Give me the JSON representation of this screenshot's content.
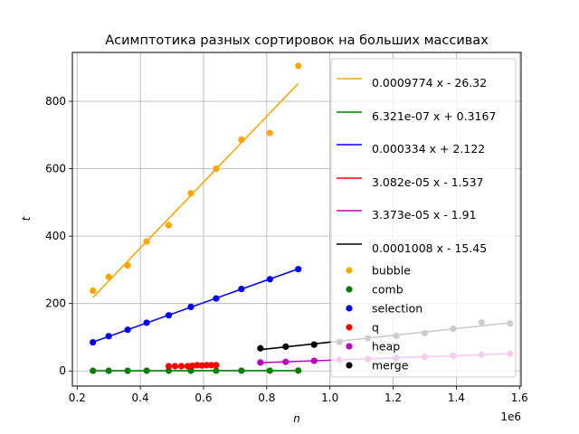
{
  "chart_data": {
    "type": "scatter",
    "title": "Асимптотика разных сортировок на больших массивах",
    "xlabel": "n",
    "ylabel": "t",
    "x_offset_label": "1e6",
    "xlim": [
      0.185,
      1.605
    ],
    "ylim": [
      -45,
      945
    ],
    "grid": true,
    "legend_position": "upper right",
    "x_ticks": [
      {
        "value": 0.2,
        "label": "0.2"
      },
      {
        "value": 0.4,
        "label": "0.4"
      },
      {
        "value": 0.6,
        "label": "0.6"
      },
      {
        "value": 0.8,
        "label": "0.8"
      },
      {
        "value": 1.0,
        "label": "1.0"
      },
      {
        "value": 1.2,
        "label": "1.2"
      },
      {
        "value": 1.4,
        "label": "1.4"
      },
      {
        "value": 1.6,
        "label": "1.6"
      }
    ],
    "y_ticks": [
      {
        "value": 0,
        "label": "0"
      },
      {
        "value": 200,
        "label": "200"
      },
      {
        "value": 400,
        "label": "400"
      },
      {
        "value": 600,
        "label": "600"
      },
      {
        "value": 800,
        "label": "800"
      }
    ],
    "fit_lines": [
      {
        "label": "0.0009774 x - 26.32",
        "color": "#ffa500",
        "x": [
          0.25,
          0.9
        ],
        "y": [
          218,
          853
        ]
      },
      {
        "label": "6.321e-07 x + 0.3167",
        "color": "#008000",
        "x": [
          0.25,
          0.9
        ],
        "y": [
          0.5,
          0.9
        ]
      },
      {
        "label": "0.000334 x + 2.122",
        "color": "#0000ff",
        "x": [
          0.25,
          0.9
        ],
        "y": [
          85.6,
          302.7
        ]
      },
      {
        "label": "3.082e-05 x - 1.537",
        "color": "#ff0000",
        "x": [
          0.49,
          0.64
        ],
        "y": [
          13.6,
          18.2
        ]
      },
      {
        "label": "3.373e-05 x - 1.91",
        "color": "#bf00bf",
        "x": [
          0.78,
          1.57
        ],
        "y": [
          24.4,
          51.0
        ]
      },
      {
        "label": "0.0001008 x - 15.45",
        "color": "#000000",
        "x": [
          0.78,
          1.57
        ],
        "y": [
          63.2,
          142.8
        ]
      }
    ],
    "series": [
      {
        "name": "bubble",
        "color": "#ffa500",
        "points": [
          [
            0.25,
            238
          ],
          [
            0.3,
            279
          ],
          [
            0.36,
            313
          ],
          [
            0.42,
            384
          ],
          [
            0.49,
            432
          ],
          [
            0.56,
            527
          ],
          [
            0.64,
            600
          ],
          [
            0.72,
            686
          ],
          [
            0.81,
            706
          ],
          [
            0.9,
            905
          ]
        ]
      },
      {
        "name": "comb",
        "color": "#008000",
        "points": [
          [
            0.25,
            0.5
          ],
          [
            0.3,
            0.5
          ],
          [
            0.36,
            0.5
          ],
          [
            0.42,
            0.6
          ],
          [
            0.49,
            0.6
          ],
          [
            0.56,
            0.7
          ],
          [
            0.64,
            0.7
          ],
          [
            0.72,
            0.8
          ],
          [
            0.81,
            0.8
          ],
          [
            0.9,
            0.9
          ]
        ]
      },
      {
        "name": "selection",
        "color": "#0000ff",
        "points": [
          [
            0.25,
            85
          ],
          [
            0.3,
            103
          ],
          [
            0.36,
            122
          ],
          [
            0.42,
            143
          ],
          [
            0.49,
            165
          ],
          [
            0.56,
            190
          ],
          [
            0.64,
            215
          ],
          [
            0.72,
            243
          ],
          [
            0.81,
            272
          ],
          [
            0.9,
            302
          ]
        ]
      },
      {
        "name": "q",
        "color": "#ff0000",
        "points": [
          [
            0.49,
            14
          ],
          [
            0.51,
            14
          ],
          [
            0.53,
            14
          ],
          [
            0.55,
            14
          ],
          [
            0.565,
            15
          ],
          [
            0.58,
            17
          ],
          [
            0.595,
            16
          ],
          [
            0.61,
            17
          ],
          [
            0.625,
            17
          ],
          [
            0.64,
            17
          ]
        ]
      },
      {
        "name": "heap",
        "color": "#bf00bf",
        "points": [
          [
            0.78,
            25
          ],
          [
            0.86,
            27
          ],
          [
            0.95,
            30
          ],
          [
            1.03,
            33
          ],
          [
            1.12,
            35
          ],
          [
            1.21,
            38
          ],
          [
            1.3,
            42
          ],
          [
            1.39,
            45
          ],
          [
            1.48,
            48
          ],
          [
            1.57,
            51
          ]
        ]
      },
      {
        "name": "merge",
        "color": "#000000",
        "points": [
          [
            0.78,
            67
          ],
          [
            0.86,
            72
          ],
          [
            0.95,
            78
          ],
          [
            1.03,
            86
          ],
          [
            1.12,
            97
          ],
          [
            1.21,
            104
          ],
          [
            1.3,
            112
          ],
          [
            1.39,
            125
          ],
          [
            1.48,
            144
          ],
          [
            1.57,
            141
          ]
        ]
      }
    ]
  }
}
